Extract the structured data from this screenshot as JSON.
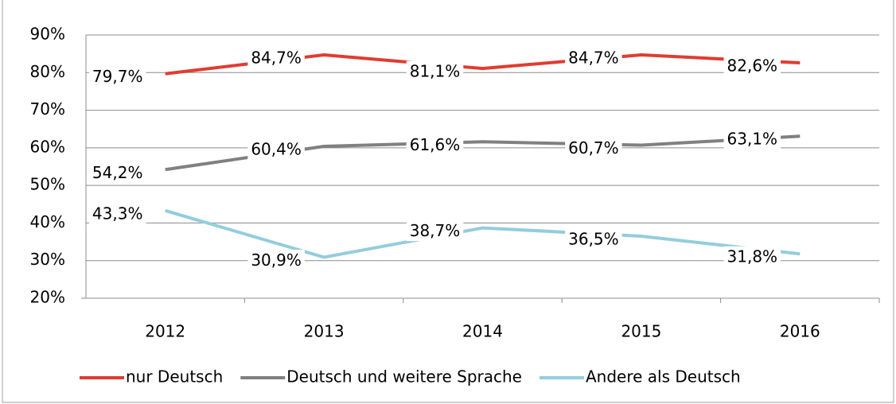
{
  "chart_data": {
    "type": "line",
    "categories": [
      "2012",
      "2013",
      "2014",
      "2015",
      "2016"
    ],
    "series": [
      {
        "name": "nur Deutsch",
        "color": "#e03c31",
        "values": [
          79.7,
          84.7,
          81.1,
          84.7,
          82.6
        ],
        "value_labels": [
          "79,7%",
          "84,7%",
          "81,1%",
          "84,7%",
          "82,6%"
        ]
      },
      {
        "name": "Deutsch und weitere Sprache",
        "color": "#808080",
        "values": [
          54.2,
          60.4,
          61.6,
          60.7,
          63.1
        ],
        "value_labels": [
          "54,2%",
          "60,4%",
          "61,6%",
          "60,7%",
          "63,1%"
        ]
      },
      {
        "name": "Andere als Deutsch",
        "color": "#93cddd",
        "values": [
          43.3,
          30.9,
          38.7,
          36.5,
          31.8
        ],
        "value_labels": [
          "43,3%",
          "30,9%",
          "38,7%",
          "36,5%",
          "31,8%"
        ]
      }
    ],
    "ylim": [
      20,
      90
    ],
    "yticks": [
      {
        "value": 20,
        "label": "20%"
      },
      {
        "value": 30,
        "label": "30%"
      },
      {
        "value": 40,
        "label": "40%"
      },
      {
        "value": 50,
        "label": "50%"
      },
      {
        "value": 60,
        "label": "60%"
      },
      {
        "value": 70,
        "label": "70%"
      },
      {
        "value": 80,
        "label": "80%"
      },
      {
        "value": 90,
        "label": "90%"
      }
    ],
    "grid": true,
    "legend": "bottom"
  }
}
